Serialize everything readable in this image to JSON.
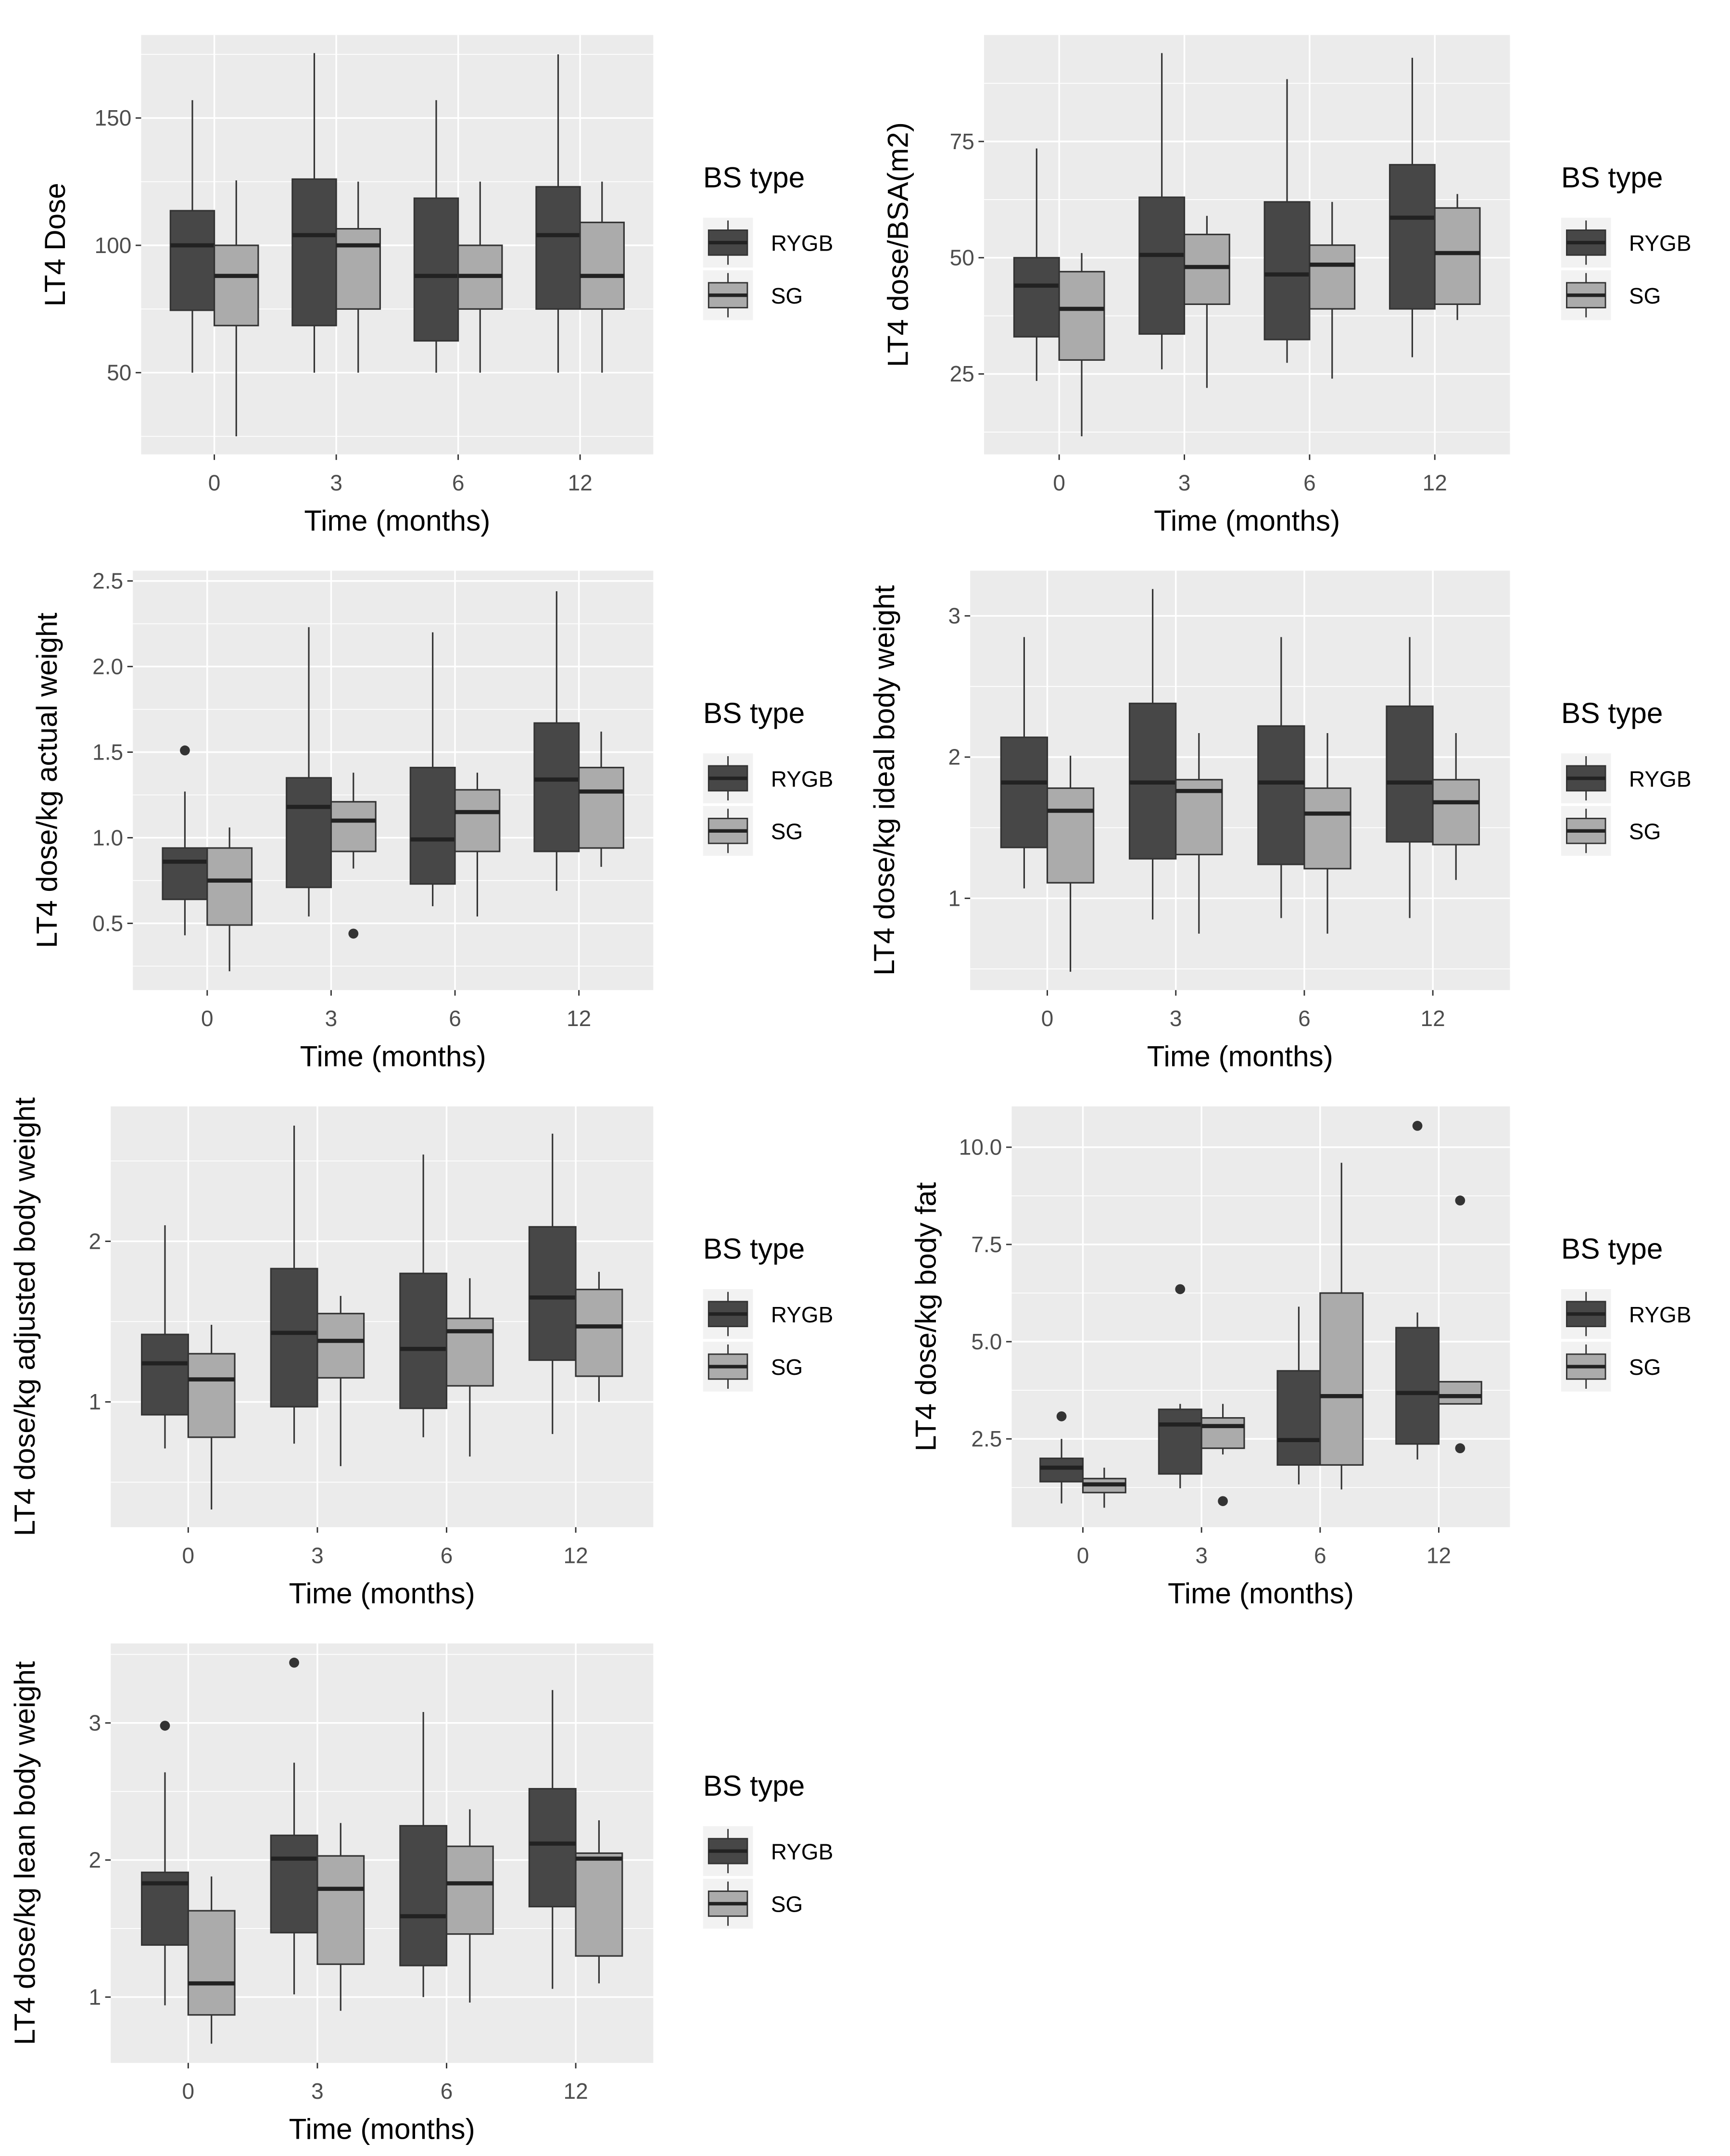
{
  "chart_data": [
    {
      "type": "boxplot",
      "ylabel": "LT4 Dose",
      "xlabel": "Time (months)",
      "categories": [
        "0",
        "3",
        "6",
        "12"
      ],
      "y_ticks": [
        50,
        100,
        150
      ],
      "y_tick_labels": [
        "50",
        "100",
        "150"
      ],
      "ylim": [
        17.9,
        182.6
      ],
      "legend_title": "BS type",
      "legend_position": "right",
      "series": [
        {
          "name": "RYGB",
          "fill": "#474747",
          "boxes": [
            {
              "lower": 50,
              "q1": 74.5,
              "median": 100,
              "q3": 113.6,
              "upper": 157,
              "outliers": []
            },
            {
              "lower": 50,
              "q1": 68.5,
              "median": 104,
              "q3": 126,
              "upper": 175.5,
              "outliers": []
            },
            {
              "lower": 50,
              "q1": 62.5,
              "median": 88,
              "q3": 118.5,
              "upper": 157,
              "outliers": []
            },
            {
              "lower": 50,
              "q1": 75,
              "median": 104,
              "q3": 123,
              "upper": 175,
              "outliers": []
            }
          ]
        },
        {
          "name": "SG",
          "fill": "#ababab",
          "boxes": [
            {
              "lower": 25,
              "q1": 68.5,
              "median": 88,
              "q3": 100,
              "upper": 125.5,
              "outliers": []
            },
            {
              "lower": 50,
              "q1": 75,
              "median": 100,
              "q3": 106.5,
              "upper": 125,
              "outliers": []
            },
            {
              "lower": 50,
              "q1": 75,
              "median": 88,
              "q3": 100,
              "upper": 125,
              "outliers": []
            },
            {
              "lower": 50,
              "q1": 75,
              "median": 88,
              "q3": 109,
              "upper": 125,
              "outliers": []
            }
          ]
        }
      ]
    },
    {
      "type": "boxplot",
      "ylabel": "LT4 dose/BSA(m2)",
      "xlabel": "Time (months)",
      "categories": [
        "0",
        "3",
        "6",
        "12"
      ],
      "y_ticks": [
        25,
        50,
        75
      ],
      "y_tick_labels": [
        "25",
        "50",
        "75"
      ],
      "ylim": [
        7.7,
        97.9
      ],
      "legend_title": "BS type",
      "legend_position": "right",
      "series": [
        {
          "name": "RYGB",
          "fill": "#474747",
          "boxes": [
            {
              "lower": 23.5,
              "q1": 33,
              "median": 44,
              "q3": 50,
              "upper": 73.5,
              "outliers": []
            },
            {
              "lower": 26,
              "q1": 33.6,
              "median": 50.6,
              "q3": 63,
              "upper": 94,
              "outliers": []
            },
            {
              "lower": 27.4,
              "q1": 32.4,
              "median": 46.4,
              "q3": 62,
              "upper": 88.4,
              "outliers": []
            },
            {
              "lower": 28.6,
              "q1": 39,
              "median": 58.6,
              "q3": 70,
              "upper": 93,
              "outliers": []
            }
          ]
        },
        {
          "name": "SG",
          "fill": "#ababab",
          "boxes": [
            {
              "lower": 11.6,
              "q1": 28,
              "median": 39,
              "q3": 47,
              "upper": 51,
              "outliers": []
            },
            {
              "lower": 22,
              "q1": 40,
              "median": 48,
              "q3": 55,
              "upper": 59,
              "outliers": []
            },
            {
              "lower": 24,
              "q1": 39,
              "median": 48.5,
              "q3": 52.7,
              "upper": 62,
              "outliers": []
            },
            {
              "lower": 36.6,
              "q1": 40,
              "median": 51,
              "q3": 60.7,
              "upper": 63.7,
              "outliers": []
            }
          ]
        }
      ]
    },
    {
      "type": "boxplot",
      "ylabel": "LT4 dose/kg actual weight",
      "xlabel": "Time (months)",
      "categories": [
        "0",
        "3",
        "6",
        "12"
      ],
      "y_ticks": [
        0.5,
        1.0,
        1.5,
        2.0,
        2.5
      ],
      "y_tick_labels": [
        "0.5",
        "1.0",
        "1.5",
        "2.0",
        "2.5"
      ],
      "ylim": [
        0.11,
        2.56
      ],
      "legend_title": "BS type",
      "legend_position": "right",
      "series": [
        {
          "name": "RYGB",
          "fill": "#474747",
          "boxes": [
            {
              "lower": 0.43,
              "q1": 0.64,
              "median": 0.86,
              "q3": 0.94,
              "upper": 1.27,
              "outliers": [
                1.51
              ]
            },
            {
              "lower": 0.54,
              "q1": 0.71,
              "median": 1.18,
              "q3": 1.35,
              "upper": 2.23,
              "outliers": []
            },
            {
              "lower": 0.6,
              "q1": 0.73,
              "median": 0.99,
              "q3": 1.41,
              "upper": 2.2,
              "outliers": []
            },
            {
              "lower": 0.69,
              "q1": 0.92,
              "median": 1.34,
              "q3": 1.67,
              "upper": 2.44,
              "outliers": []
            }
          ]
        },
        {
          "name": "SG",
          "fill": "#ababab",
          "boxes": [
            {
              "lower": 0.22,
              "q1": 0.49,
              "median": 0.75,
              "q3": 0.94,
              "upper": 1.06,
              "outliers": []
            },
            {
              "lower": 0.82,
              "q1": 0.92,
              "median": 1.1,
              "q3": 1.21,
              "upper": 1.38,
              "outliers": [
                0.44
              ]
            },
            {
              "lower": 0.54,
              "q1": 0.92,
              "median": 1.15,
              "q3": 1.28,
              "upper": 1.38,
              "outliers": []
            },
            {
              "lower": 0.83,
              "q1": 0.94,
              "median": 1.27,
              "q3": 1.41,
              "upper": 1.62,
              "outliers": []
            }
          ]
        }
      ]
    },
    {
      "type": "boxplot",
      "ylabel": "LT4 dose/kg ideal body weight",
      "xlabel": "Time (months)",
      "categories": [
        "0",
        "3",
        "6",
        "12"
      ],
      "y_ticks": [
        1,
        2,
        3
      ],
      "y_tick_labels": [
        "1",
        "2",
        "3"
      ],
      "ylim": [
        0.35,
        3.32
      ],
      "legend_title": "BS type",
      "legend_position": "right",
      "series": [
        {
          "name": "RYGB",
          "fill": "#474747",
          "boxes": [
            {
              "lower": 1.07,
              "q1": 1.36,
              "median": 1.82,
              "q3": 2.14,
              "upper": 2.85,
              "outliers": []
            },
            {
              "lower": 0.85,
              "q1": 1.28,
              "median": 1.82,
              "q3": 2.38,
              "upper": 3.19,
              "outliers": []
            },
            {
              "lower": 0.86,
              "q1": 1.24,
              "median": 1.82,
              "q3": 2.22,
              "upper": 2.85,
              "outliers": []
            },
            {
              "lower": 0.86,
              "q1": 1.4,
              "median": 1.82,
              "q3": 2.36,
              "upper": 2.85,
              "outliers": []
            }
          ]
        },
        {
          "name": "SG",
          "fill": "#ababab",
          "boxes": [
            {
              "lower": 0.48,
              "q1": 1.11,
              "median": 1.62,
              "q3": 1.78,
              "upper": 2.01,
              "outliers": []
            },
            {
              "lower": 0.75,
              "q1": 1.31,
              "median": 1.76,
              "q3": 1.84,
              "upper": 2.17,
              "outliers": []
            },
            {
              "lower": 0.75,
              "q1": 1.21,
              "median": 1.6,
              "q3": 1.78,
              "upper": 2.17,
              "outliers": []
            },
            {
              "lower": 1.13,
              "q1": 1.38,
              "median": 1.68,
              "q3": 1.84,
              "upper": 2.17,
              "outliers": []
            }
          ]
        }
      ]
    },
    {
      "type": "boxplot",
      "ylabel": "LT4 dose/kg adjusted body weight",
      "xlabel": "Time (months)",
      "categories": [
        "0",
        "3",
        "6",
        "12"
      ],
      "y_ticks": [
        1,
        2
      ],
      "y_tick_labels": [
        "1",
        "2"
      ],
      "ylim": [
        0.22,
        2.84
      ],
      "legend_title": "BS type",
      "legend_position": "right",
      "series": [
        {
          "name": "RYGB",
          "fill": "#474747",
          "boxes": [
            {
              "lower": 0.71,
              "q1": 0.92,
              "median": 1.24,
              "q3": 1.42,
              "upper": 2.1,
              "outliers": []
            },
            {
              "lower": 0.74,
              "q1": 0.97,
              "median": 1.43,
              "q3": 1.83,
              "upper": 2.72,
              "outliers": []
            },
            {
              "lower": 0.78,
              "q1": 0.96,
              "median": 1.33,
              "q3": 1.8,
              "upper": 2.54,
              "outliers": []
            },
            {
              "lower": 0.8,
              "q1": 1.26,
              "median": 1.65,
              "q3": 2.09,
              "upper": 2.67,
              "outliers": []
            }
          ]
        },
        {
          "name": "SG",
          "fill": "#ababab",
          "boxes": [
            {
              "lower": 0.33,
              "q1": 0.78,
              "median": 1.14,
              "q3": 1.3,
              "upper": 1.48,
              "outliers": []
            },
            {
              "lower": 0.6,
              "q1": 1.15,
              "median": 1.38,
              "q3": 1.55,
              "upper": 1.66,
              "outliers": []
            },
            {
              "lower": 0.66,
              "q1": 1.1,
              "median": 1.44,
              "q3": 1.52,
              "upper": 1.77,
              "outliers": []
            },
            {
              "lower": 1.0,
              "q1": 1.16,
              "median": 1.47,
              "q3": 1.7,
              "upper": 1.81,
              "outliers": []
            }
          ]
        }
      ]
    },
    {
      "type": "boxplot",
      "ylabel": "LT4 dose/kg body fat",
      "xlabel": "Time (months)",
      "categories": [
        "0",
        "3",
        "6",
        "12"
      ],
      "y_ticks": [
        2.5,
        5.0,
        7.5,
        10.0
      ],
      "y_tick_labels": [
        "2.5",
        "5.0",
        "7.5",
        "10.0"
      ],
      "ylim": [
        0.23,
        11.05
      ],
      "legend_title": "BS type",
      "legend_position": "right",
      "series": [
        {
          "name": "RYGB",
          "fill": "#474747",
          "boxes": [
            {
              "lower": 0.84,
              "q1": 1.4,
              "median": 1.76,
              "q3": 2.0,
              "upper": 2.5,
              "outliers": [
                3.08
              ]
            },
            {
              "lower": 1.23,
              "q1": 1.6,
              "median": 2.87,
              "q3": 3.26,
              "upper": 3.4,
              "outliers": [
                6.35
              ]
            },
            {
              "lower": 1.33,
              "q1": 1.83,
              "median": 2.47,
              "q3": 4.25,
              "upper": 5.9,
              "outliers": []
            },
            {
              "lower": 1.97,
              "q1": 2.37,
              "median": 3.68,
              "q3": 5.36,
              "upper": 5.75,
              "outliers": [
                10.55
              ]
            }
          ]
        },
        {
          "name": "SG",
          "fill": "#ababab",
          "boxes": [
            {
              "lower": 0.73,
              "q1": 1.12,
              "median": 1.33,
              "q3": 1.48,
              "upper": 1.76,
              "outliers": []
            },
            {
              "lower": 2.1,
              "q1": 2.26,
              "median": 2.83,
              "q3": 3.04,
              "upper": 3.4,
              "outliers": [
                0.9
              ]
            },
            {
              "lower": 1.2,
              "q1": 1.83,
              "median": 3.6,
              "q3": 6.25,
              "upper": 9.6,
              "outliers": []
            },
            {
              "lower": 3.4,
              "q1": 3.4,
              "median": 3.6,
              "q3": 3.97,
              "upper": 3.97,
              "outliers": [
                8.63,
                2.26
              ]
            }
          ]
        }
      ]
    },
    {
      "type": "boxplot",
      "ylabel": "LT4 dose/kg lean body weight",
      "xlabel": "Time (months)",
      "categories": [
        "0",
        "3",
        "6",
        "12"
      ],
      "y_ticks": [
        1,
        2,
        3
      ],
      "y_tick_labels": [
        "1",
        "2",
        "3"
      ],
      "ylim": [
        0.52,
        3.58
      ],
      "legend_title": "BS type",
      "legend_position": "right",
      "series": [
        {
          "name": "RYGB",
          "fill": "#474747",
          "boxes": [
            {
              "lower": 0.94,
              "q1": 1.38,
              "median": 1.83,
              "q3": 1.91,
              "upper": 2.64,
              "outliers": [
                2.98
              ]
            },
            {
              "lower": 1.02,
              "q1": 1.47,
              "median": 2.01,
              "q3": 2.18,
              "upper": 2.71,
              "outliers": [
                3.44
              ]
            },
            {
              "lower": 1.0,
              "q1": 1.23,
              "median": 1.59,
              "q3": 2.25,
              "upper": 3.08,
              "outliers": []
            },
            {
              "lower": 1.06,
              "q1": 1.66,
              "median": 2.12,
              "q3": 2.52,
              "upper": 3.24,
              "outliers": []
            }
          ]
        },
        {
          "name": "SG",
          "fill": "#ababab",
          "boxes": [
            {
              "lower": 0.66,
              "q1": 0.87,
              "median": 1.1,
              "q3": 1.63,
              "upper": 1.88,
              "outliers": []
            },
            {
              "lower": 0.9,
              "q1": 1.24,
              "median": 1.79,
              "q3": 2.03,
              "upper": 2.27,
              "outliers": []
            },
            {
              "lower": 0.96,
              "q1": 1.46,
              "median": 1.83,
              "q3": 2.1,
              "upper": 2.37,
              "outliers": []
            },
            {
              "lower": 1.1,
              "q1": 1.3,
              "median": 2.01,
              "q3": 2.05,
              "upper": 2.29,
              "outliers": []
            }
          ]
        }
      ]
    }
  ]
}
